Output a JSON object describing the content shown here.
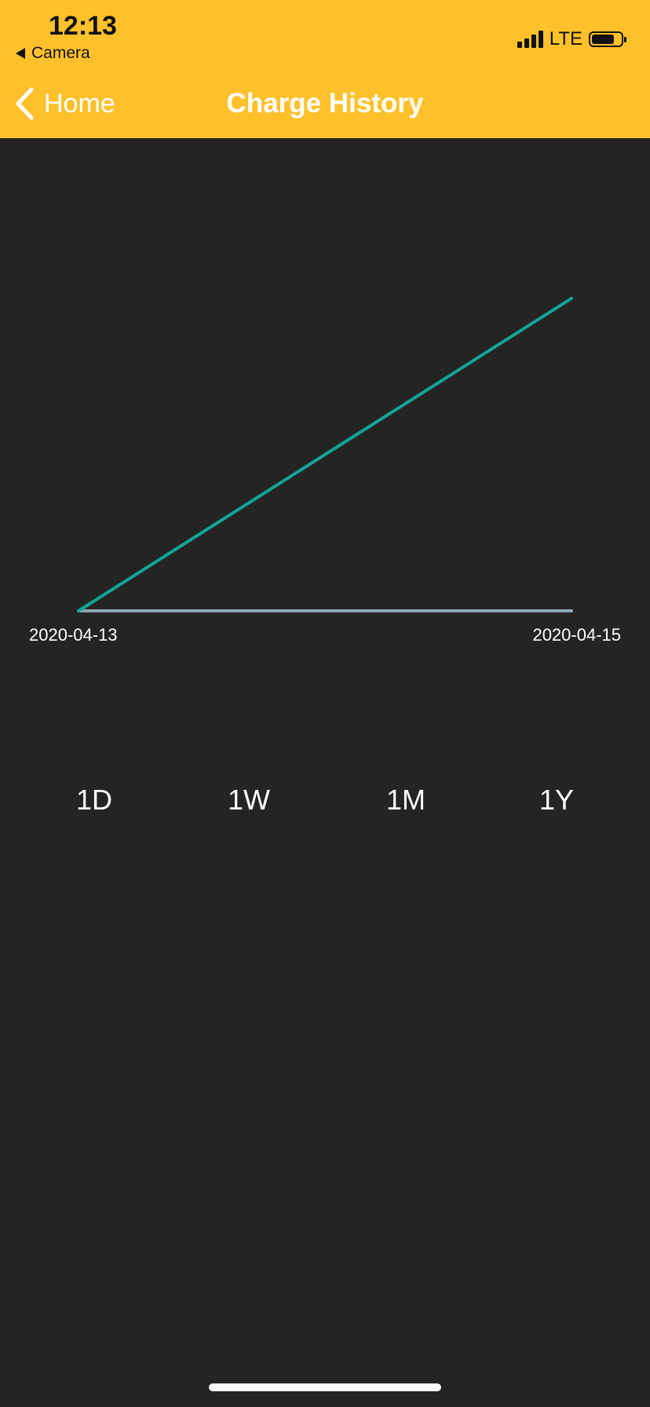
{
  "status_bar": {
    "time": "12:13",
    "back_app": "Camera",
    "network": "LTE",
    "icons": [
      "signal-icon",
      "battery-icon"
    ]
  },
  "nav": {
    "back_label": "Home",
    "title": "Charge History"
  },
  "colors": {
    "header": "#FFC12B",
    "background": "#242424",
    "series_line": "#12A596",
    "axis_line": "#8FA6B4"
  },
  "chart_data": {
    "type": "line",
    "x_tick_labels": [
      "2020-04-13",
      "2020-04-15"
    ],
    "series": [
      {
        "x": [
          "2020-04-13",
          "2020-04-15"
        ],
        "values": [
          0,
          1
        ]
      }
    ],
    "grid": false
  },
  "ranges": [
    "1D",
    "1W",
    "1M",
    "1Y"
  ]
}
